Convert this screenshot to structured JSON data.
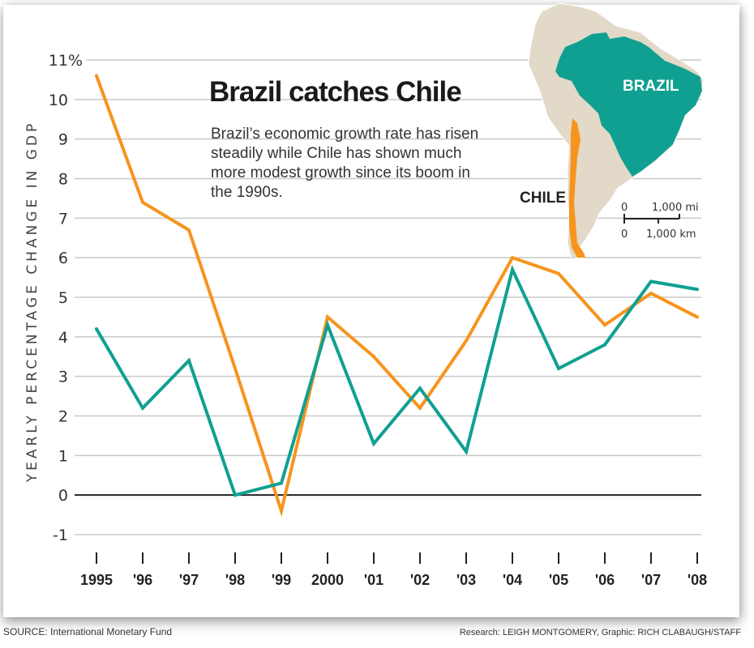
{
  "chart_data": {
    "type": "line",
    "title": "Brazil catches Chile",
    "subtitle": "Brazil’s economic growth rate has risen steadily while Chile has shown much more modest growth since its boom in the 1990s.",
    "xlabel": "",
    "ylabel": "YEARLY PERCENTAGE CHANGE IN GDP",
    "ylim": [
      -1,
      11
    ],
    "yticks": [
      -1,
      0,
      1,
      2,
      3,
      4,
      5,
      6,
      7,
      8,
      9,
      10,
      11
    ],
    "ytick_labels": [
      "-1",
      "0",
      "1",
      "2",
      "3",
      "4",
      "5",
      "6",
      "7",
      "8",
      "9",
      "10",
      "11%"
    ],
    "categories": [
      "1995",
      "'96",
      "'97",
      "'98",
      "'99",
      "2000",
      "'01",
      "'02",
      "'03",
      "'04",
      "'05",
      "'06",
      "'07",
      "'08"
    ],
    "grid": true,
    "series": [
      {
        "name": "Chile",
        "color": "#f7941d",
        "values": [
          10.6,
          7.4,
          6.7,
          3.2,
          -0.4,
          4.5,
          3.5,
          2.2,
          3.9,
          6.0,
          5.6,
          4.3,
          5.1,
          4.5
        ]
      },
      {
        "name": "Brazil",
        "color": "#10a091",
        "values": [
          4.2,
          2.2,
          3.4,
          0.0,
          0.3,
          4.3,
          1.3,
          2.7,
          1.1,
          5.7,
          3.2,
          3.8,
          5.4,
          5.2
        ]
      }
    ],
    "annotations": {
      "map_labels": [
        "BRAZIL",
        "CHILE"
      ],
      "scale_bar": {
        "top_label_left": "0",
        "top_label_right": "1,000 mi",
        "bottom_label_left": "0",
        "bottom_label_right": "1,000 km"
      }
    }
  },
  "colors": {
    "brazil": "#10a091",
    "chile": "#f7941d",
    "land": "#e2d9c8",
    "grid": "#c8c8c8",
    "zero_line": "#222222"
  },
  "footer": {
    "source": "SOURCE: International Monetary Fund",
    "credits": "Research: LEIGH MONTGOMERY, Graphic: RICH CLABAUGH/STAFF"
  }
}
